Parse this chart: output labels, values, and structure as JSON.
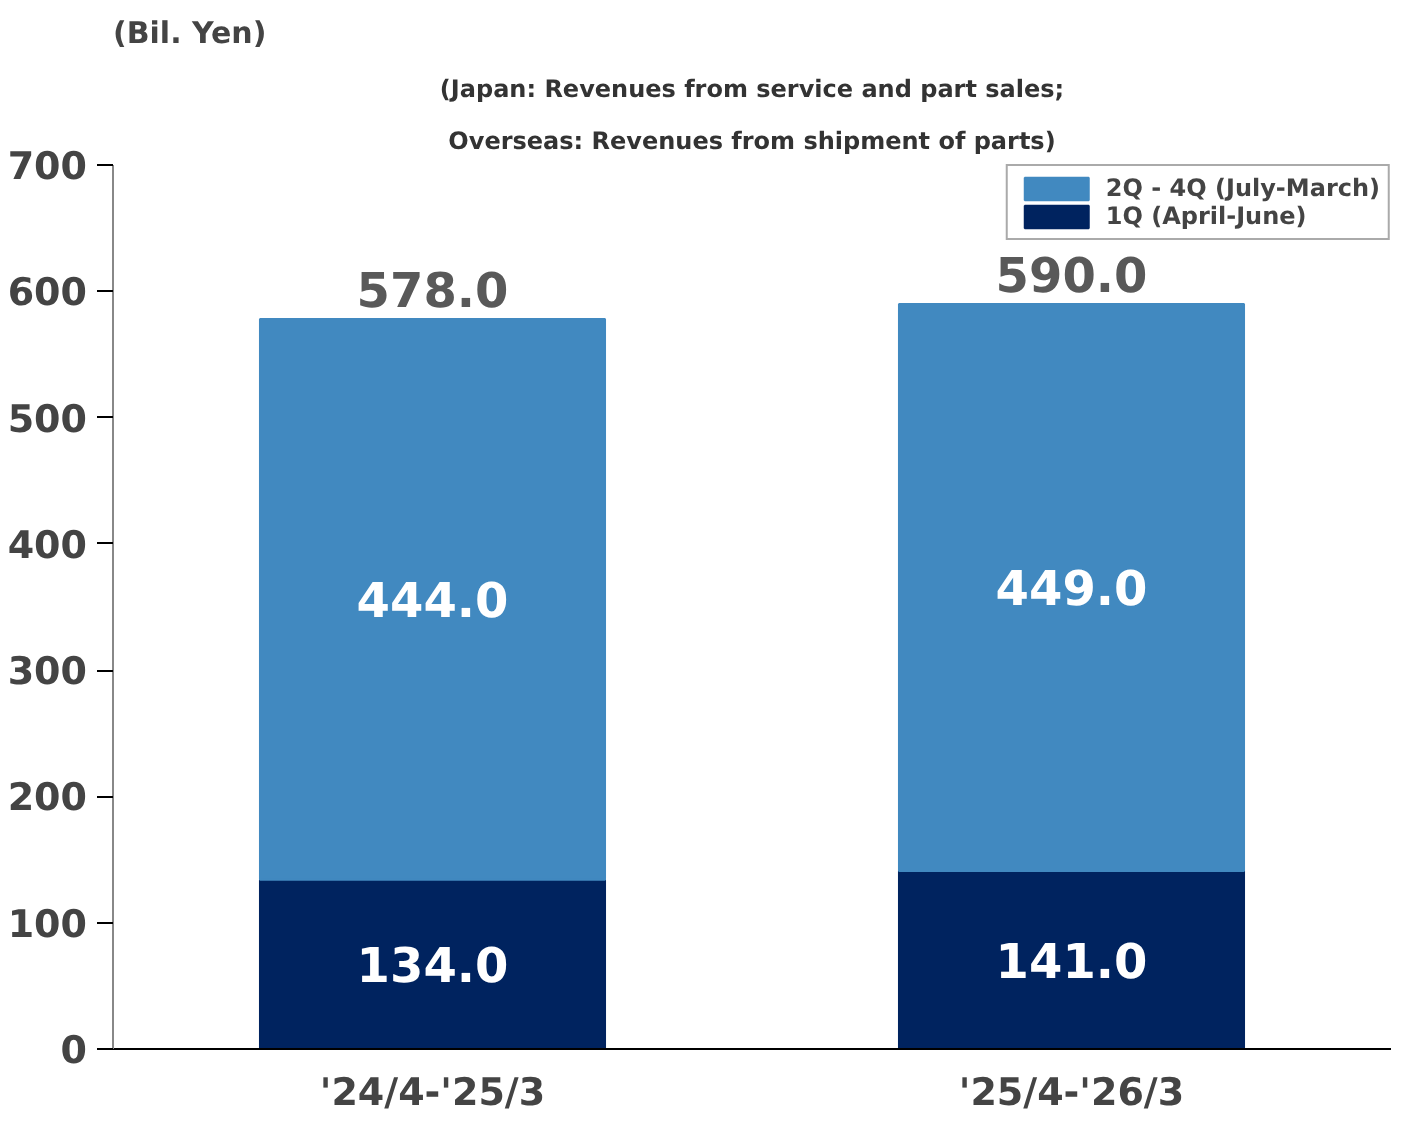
{
  "chart_data": {
    "type": "bar",
    "title": "(Japan: Revenues from service and part sales;",
    "subtitle": "Overseas: Revenues from shipment of parts)",
    "ylabel": "(Bil. Yen)",
    "categories": [
      "'24/4-'25/3",
      "'25/4-'26/3"
    ],
    "stacked": true,
    "series": [
      {
        "name": "1Q (April-June)",
        "color": "#00235f",
        "values": [
          134.0,
          141.0
        ],
        "value_labels": [
          "134.0",
          "141.0"
        ]
      },
      {
        "name": "2Q - 4Q (July-March)",
        "color": "#4189c0",
        "values": [
          444.0,
          449.0
        ],
        "value_labels": [
          "444.0",
          "449.0"
        ]
      }
    ],
    "totals": [
      "578.0",
      "590.0"
    ],
    "ylim": [
      0,
      700
    ],
    "yticks": [
      0,
      100,
      200,
      300,
      400,
      500,
      600,
      700
    ],
    "grid": false,
    "legend": "top right"
  }
}
